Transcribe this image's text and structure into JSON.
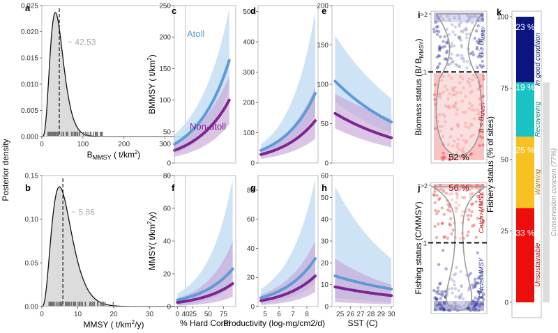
{
  "colors": {
    "atoll_line": "#5b9bd8",
    "atoll_band": "#c6def5",
    "nonatoll_line": "#7d2590",
    "nonatoll_band": "#c8a6d6",
    "posterior_fill": "#dcdcdc",
    "rug": "#707070",
    "median_label": "#a8a8a8",
    "good": "#0c1480",
    "recovering": "#19c3c3",
    "warning": "#f8c020",
    "unsustainable": "#ee0d0d",
    "violin_blue_dots": "#2a2f9a",
    "violin_red_dots": "#ea3030"
  },
  "shared": {
    "posterior_ylabel": "Posterior density",
    "legend_atoll": "Atoll",
    "legend_nonatoll": "Non-atoll"
  },
  "chart_data": [
    {
      "id": "a",
      "type": "area",
      "panel_label": "a",
      "xlabel": "BMMSY (t/km2)",
      "xlabel_main": "B",
      "xlabel_sub": "MMSY",
      "xlabel_rest": " ( t/km",
      "xlabel_sup": "2",
      "xlabel_end": ")",
      "xlim": [
        0,
        350
      ],
      "ylim": [
        0,
        0.025
      ],
      "xticks": [
        0,
        100,
        200,
        300
      ],
      "yticks": [
        0,
        0.005,
        0.01,
        0.015,
        0.02,
        0.025
      ],
      "ytick_labels": [
        "0.000",
        "0.005",
        "0.010",
        "0.015",
        "0.020",
        "0.025"
      ],
      "median": 42.53,
      "median_label": "~ 42.53",
      "curve": {
        "mode": 33,
        "shape": 5
      },
      "rug_range": [
        15,
        150
      ]
    },
    {
      "id": "b",
      "type": "area",
      "panel_label": "b",
      "xlabel": "MMSY (t/km2/y)",
      "xlabel_main": "MMSY",
      "xlabel_sub": "",
      "xlabel_rest": " ( t/km",
      "xlabel_sup": "2",
      "xlabel_end": "/y)",
      "xlim": [
        0,
        40
      ],
      "ylim": [
        0,
        0.15
      ],
      "xticks": [
        0,
        10,
        20,
        30,
        40
      ],
      "yticks": [
        0,
        0.05,
        0.1,
        0.15
      ],
      "ytick_labels": [
        "0.00",
        "0.05",
        "0.10",
        "0.15"
      ],
      "median": 5.86,
      "median_label": "~ 5.86",
      "curve": {
        "mode": 4.9,
        "shape": 4
      },
      "rug_range": [
        2,
        20
      ]
    },
    {
      "id": "c",
      "type": "line",
      "panel_label": "c",
      "ylabel": "BMMSY ( t/km2)",
      "ylabel_main": "BMMSY",
      "ylabel_rest": " ( t/km",
      "ylabel_sup": "2",
      "ylabel_end": ")",
      "xlim": [
        0,
        95
      ],
      "ylim": [
        0,
        250
      ],
      "yticks": [
        0,
        50,
        100,
        150,
        200,
        250
      ],
      "xticks": [],
      "series": [
        {
          "name": "Atoll",
          "x": [
            0,
            85
          ],
          "y": [
            30,
            163
          ],
          "lo": [
            15,
            118
          ],
          "hi": [
            45,
            245
          ]
        },
        {
          "name": "Non-atoll",
          "x": [
            0,
            85
          ],
          "y": [
            20,
            100
          ],
          "lo": [
            10,
            62
          ],
          "hi": [
            32,
            138
          ]
        }
      ]
    },
    {
      "id": "d",
      "type": "line",
      "panel_label": "d",
      "xlim": [
        4.5,
        8.8
      ],
      "ylim": [
        0,
        520
      ],
      "yticks": [
        0,
        100,
        200,
        300,
        400,
        500
      ],
      "xticks": [],
      "series": [
        {
          "name": "Atoll",
          "x": [
            4.7,
            8.6
          ],
          "y": [
            42,
            230
          ],
          "lo": [
            22,
            160
          ],
          "hi": [
            62,
            500
          ]
        },
        {
          "name": "Non-atoll",
          "x": [
            4.7,
            8.6
          ],
          "y": [
            28,
            140
          ],
          "lo": [
            14,
            80
          ],
          "hi": [
            44,
            250
          ]
        }
      ]
    },
    {
      "id": "e",
      "type": "line",
      "panel_label": "e",
      "xlim": [
        24.2,
        30.2
      ],
      "ylim": [
        0,
        200
      ],
      "yticks": [
        0,
        50,
        100,
        150,
        200
      ],
      "xticks": [],
      "series": [
        {
          "name": "Atoll",
          "x": [
            24.5,
            30
          ],
          "y": [
            104,
            52
          ],
          "lo": [
            78,
            38
          ],
          "hi": [
            162,
            82
          ]
        },
        {
          "name": "Non-atoll",
          "x": [
            24.5,
            30
          ],
          "y": [
            63,
            32
          ],
          "lo": [
            44,
            20
          ],
          "hi": [
            88,
            56
          ]
        }
      ]
    },
    {
      "id": "f",
      "type": "line",
      "panel_label": "f",
      "ylabel": "MMSY( t/km2/y)",
      "ylabel_main": "MMSY( t/km",
      "ylabel_rest": "",
      "ylabel_sup": "2",
      "ylabel_end": "/y)",
      "xlabel": "% Hard Coral",
      "xlim": [
        -5,
        95
      ],
      "ylim": [
        0,
        80
      ],
      "yticks": [
        0,
        20,
        40,
        60,
        80
      ],
      "xticks": [
        0,
        25,
        50,
        75
      ],
      "series": [
        {
          "name": "Atoll",
          "x": [
            0,
            90
          ],
          "y": [
            4,
            23
          ],
          "lo": [
            1,
            13
          ],
          "hi": [
            8,
            78
          ]
        },
        {
          "name": "Non-atoll",
          "x": [
            0,
            90
          ],
          "y": [
            2.5,
            14
          ],
          "lo": [
            0.5,
            6
          ],
          "hi": [
            5,
            40
          ]
        }
      ]
    },
    {
      "id": "g",
      "type": "line",
      "panel_label": "g",
      "xlabel": "Productivity (log-mg/cm2/d)",
      "xlim": [
        4.5,
        8.8
      ],
      "ylim": [
        0,
        90
      ],
      "yticks": [
        0,
        20,
        40,
        60,
        80
      ],
      "xticks": [
        5,
        6,
        7,
        8
      ],
      "series": [
        {
          "name": "Atoll",
          "x": [
            4.7,
            8.6
          ],
          "y": [
            6,
            33
          ],
          "lo": [
            2,
            16
          ],
          "hi": [
            12,
            88
          ]
        },
        {
          "name": "Non-atoll",
          "x": [
            4.7,
            8.6
          ],
          "y": [
            4,
            21
          ],
          "lo": [
            1,
            10
          ],
          "hi": [
            8,
            45
          ]
        }
      ]
    },
    {
      "id": "h",
      "type": "line",
      "panel_label": "h",
      "xlabel": "SST (C)",
      "xlim": [
        24.2,
        30.2
      ],
      "ylim": [
        0,
        60
      ],
      "yticks": [
        0,
        10,
        20,
        30,
        40,
        50,
        60
      ],
      "xticks": [
        25,
        26,
        27,
        28,
        29,
        30
      ],
      "series": [
        {
          "name": "Atoll",
          "x": [
            24.5,
            30
          ],
          "y": [
            14,
            8
          ],
          "lo": [
            4,
            2
          ],
          "hi": [
            55,
            22
          ]
        },
        {
          "name": "Non-atoll",
          "x": [
            24.5,
            30
          ],
          "y": [
            9,
            5
          ],
          "lo": [
            2,
            1
          ],
          "hi": [
            22,
            10
          ]
        }
      ]
    },
    {
      "id": "i",
      "type": "scatter",
      "panel_label": "i",
      "ylabel": "Biomass status (B/ BMMSY)",
      "ylabel_main": "Biomass status (B/ B",
      "ylabel_sub": "MMSY",
      "ylabel_end": ")",
      "ytop_label": ">2",
      "ytick_one": "1",
      "upper_label": "B ≥ B",
      "upper_sub": "MMSY",
      "lower_label": "B < B",
      "lower_sub": "MMSY",
      "pct_label": "52 %",
      "pct_position": "bottom"
    },
    {
      "id": "j",
      "type": "scatter",
      "panel_label": "j",
      "ylabel": "Fishing status (C/MMSY)",
      "ytop_label": ">2",
      "ytick_one": "1",
      "upper_label": "Catch>MMSY",
      "lower_label": "Catch≤MMSY",
      "pct_label": "56 %",
      "pct_position": "top"
    },
    {
      "id": "k",
      "type": "bar",
      "panel_label": "k",
      "ylabel": "Fishery status (% of sites)",
      "ylim": [
        0,
        100
      ],
      "yticks": [
        0,
        25,
        50,
        75,
        100
      ],
      "segments": [
        {
          "name": "Unsustainable",
          "value": 33,
          "label": "33 %"
        },
        {
          "name": "Warning",
          "value": 25,
          "label": "25 %"
        },
        {
          "name": "Recovering",
          "value": 19,
          "label": "19 %"
        },
        {
          "name": "In good condition",
          "value": 23,
          "label": "23 %"
        }
      ],
      "bracket_label": "Conservation concern (77%)"
    }
  ]
}
